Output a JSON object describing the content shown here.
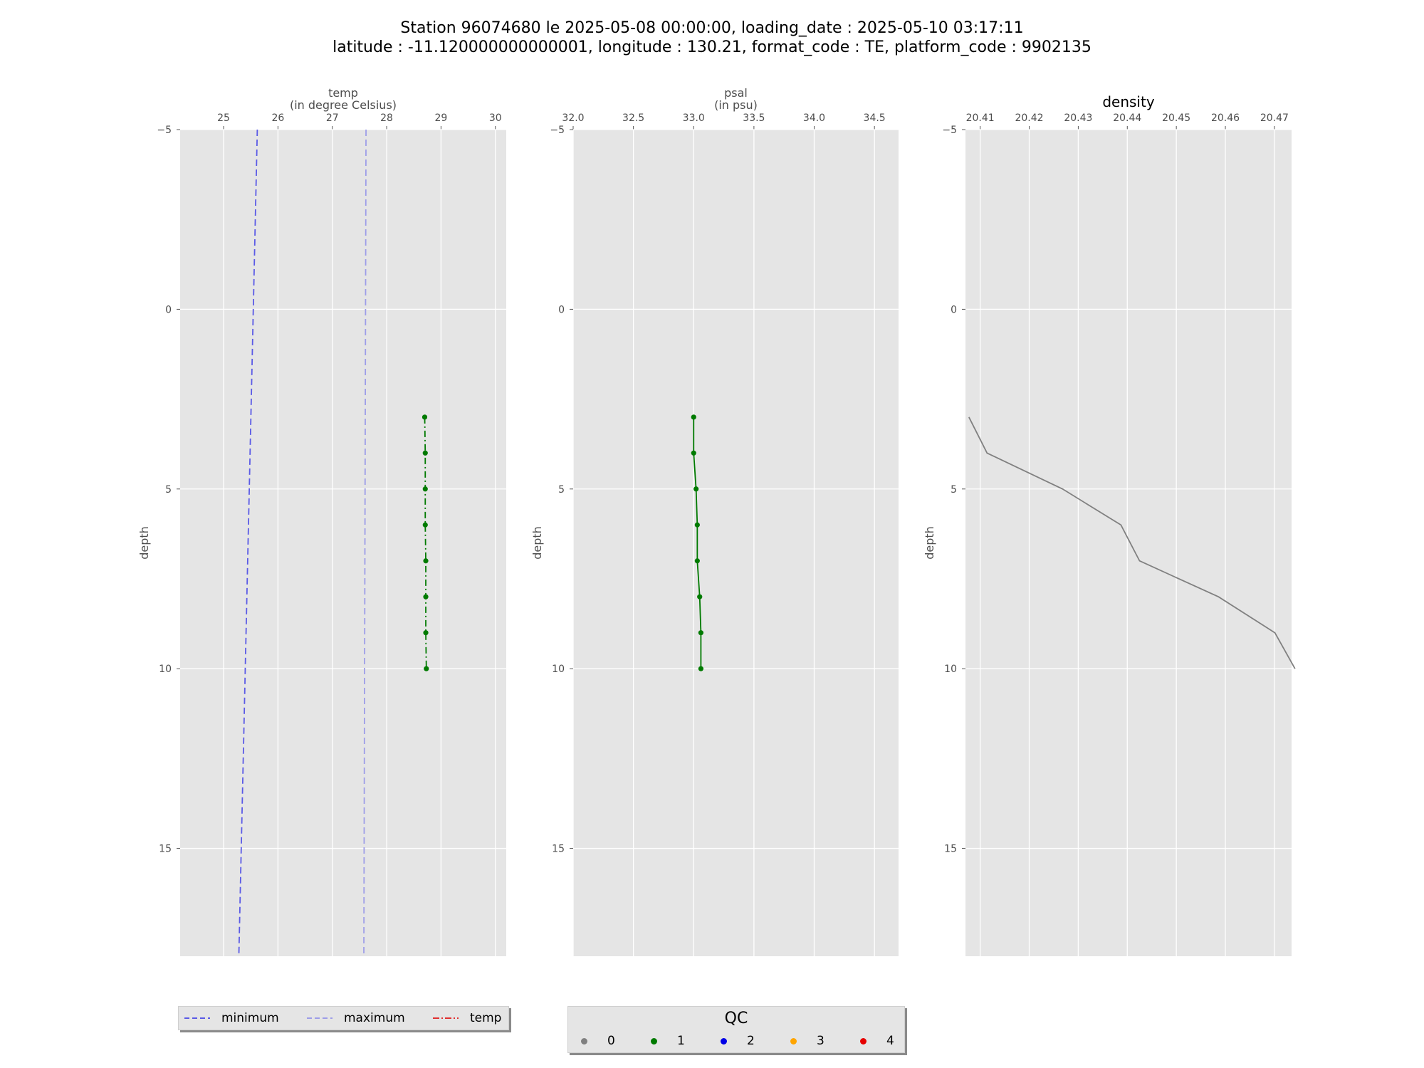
{
  "title": {
    "line1": "Station 96074680 le 2025-05-08 00:00:00, loading_date : 2025-05-10 03:17:11",
    "line2": "latitude : -11.120000000000001, longitude : 130.21, format_code : TE, platform_code : 9902135"
  },
  "chart_data": [
    {
      "type": "line",
      "panel": "temp",
      "xlabel": "temp\n(in degree Celsius)",
      "ylabel": "depth",
      "xlim": [
        24.2,
        30.2
      ],
      "ylim": [
        18,
        -5
      ],
      "y_inverted": true,
      "xticks": [
        "25",
        "26",
        "27",
        "28",
        "29",
        "30"
      ],
      "yticks": [
        "−5",
        "0",
        "5",
        "10",
        "15"
      ],
      "grid": true,
      "series": [
        {
          "name": "minimum",
          "style": "dashed",
          "color": "#5a5ae6",
          "x": [
            25.62,
            25.28
          ],
          "y": [
            -5,
            18
          ]
        },
        {
          "name": "maximum",
          "style": "dashed",
          "color": "#9d9de8",
          "x": [
            27.62,
            27.58
          ],
          "y": [
            -5,
            18
          ]
        },
        {
          "name": "temp",
          "style": "dashdot",
          "color": "#007a00",
          "x": [
            28.7,
            28.71,
            28.71,
            28.71,
            28.72,
            28.72,
            28.72,
            28.73
          ],
          "y": [
            3,
            4,
            5,
            6,
            7,
            8,
            9,
            10
          ],
          "qc": [
            1,
            1,
            1,
            1,
            1,
            1,
            1,
            1
          ]
        }
      ]
    },
    {
      "type": "line",
      "panel": "psal",
      "xlabel": "psal\n(in psu)",
      "ylabel": "depth",
      "xlim": [
        32.0,
        34.7
      ],
      "ylim": [
        18,
        -5
      ],
      "y_inverted": true,
      "xticks": [
        "32.0",
        "32.5",
        "33.0",
        "33.5",
        "34.0",
        "34.5"
      ],
      "yticks": [
        "−5",
        "0",
        "5",
        "10",
        "15"
      ],
      "grid": true,
      "series": [
        {
          "name": "psal",
          "style": "solid",
          "color": "#007a00",
          "x": [
            33.0,
            33.0,
            33.02,
            33.03,
            33.03,
            33.05,
            33.06,
            33.06
          ],
          "y": [
            3,
            4,
            5,
            6,
            7,
            8,
            9,
            10
          ],
          "qc": [
            1,
            1,
            1,
            1,
            1,
            1,
            1,
            1
          ]
        }
      ]
    },
    {
      "type": "line",
      "panel": "density",
      "title": "density",
      "ylabel": "depth",
      "xlim": [
        20.407,
        20.4735
      ],
      "ylim": [
        18,
        -5
      ],
      "y_inverted": true,
      "xticks": [
        "20.41",
        "20.42",
        "20.43",
        "20.44",
        "20.45",
        "20.46",
        "20.47"
      ],
      "yticks": [
        "−5",
        "0",
        "5",
        "10",
        "15"
      ],
      "grid": true,
      "series": [
        {
          "name": "density",
          "style": "solid",
          "color": "#808080",
          "x": [
            20.4077,
            20.4114,
            20.4268,
            20.4387,
            20.4425,
            20.4586,
            20.4701,
            20.4742
          ],
          "y": [
            3,
            4,
            5,
            6,
            7,
            8,
            9,
            10
          ]
        }
      ]
    }
  ],
  "legend_lines": {
    "items": [
      {
        "label": "minimum",
        "color": "#5a5ae6",
        "dash": "7,4"
      },
      {
        "label": "maximum",
        "color": "#9d9de8",
        "dash": "7,4"
      },
      {
        "label": "temp",
        "color": "#e03030",
        "dash": "9,3,2,3"
      }
    ]
  },
  "legend_qc": {
    "title": "QC",
    "items": [
      {
        "label": "0",
        "color": "#808080"
      },
      {
        "label": "1",
        "color": "#007a00"
      },
      {
        "label": "2",
        "color": "#0000e6"
      },
      {
        "label": "3",
        "color": "#ffa500"
      },
      {
        "label": "4",
        "color": "#e60000"
      }
    ]
  }
}
